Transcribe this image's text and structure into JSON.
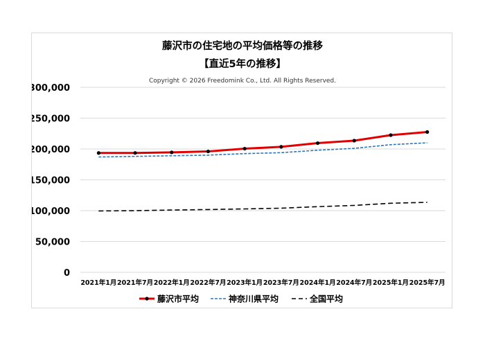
{
  "chart_data": {
    "type": "line",
    "title": "藤沢市の住宅地の平均価格等の推移",
    "subtitle": "【直近5年の推移】",
    "copyright": "Copyright © 2026 Freedomink Co., Ltd. All Rights Reserved.",
    "categories": [
      "2021年1月",
      "2021年7月",
      "2022年1月",
      "2022年7月",
      "2023年1月",
      "2023年7月",
      "2024年1月",
      "2024年7月",
      "2025年1月",
      "2025年7月"
    ],
    "y_ticks": [
      "300,000",
      "250,000",
      "200,000",
      "150,000",
      "100,000",
      "50,000",
      "0"
    ],
    "ylim": [
      0,
      300000
    ],
    "grid": true,
    "legend_position": "bottom",
    "series": [
      {
        "name": "藤沢市平均",
        "color": "#e00000",
        "style": "solid-markers",
        "values": [
          193500,
          193600,
          194500,
          196000,
          200500,
          203500,
          209500,
          213500,
          222500,
          227500
        ]
      },
      {
        "name": "神奈川県平均",
        "color": "#2e75b6",
        "style": "dashed",
        "values": [
          187000,
          188000,
          189000,
          190000,
          192500,
          194000,
          198000,
          201000,
          207000,
          210000
        ]
      },
      {
        "name": "全国平均",
        "color": "#000000",
        "style": "dashed",
        "values": [
          99500,
          100000,
          101000,
          101800,
          102800,
          104000,
          106500,
          108500,
          112000,
          113500
        ]
      }
    ]
  }
}
